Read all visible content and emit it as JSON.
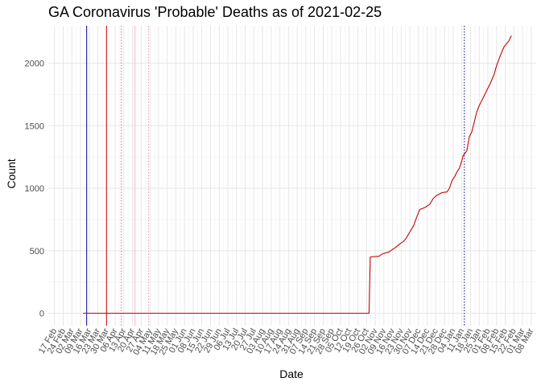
{
  "chart_data": {
    "type": "line",
    "title": "GA Coronavirus 'Probable' Deaths as of 2021-02-25",
    "xlabel": "Date",
    "ylabel": "Count",
    "xlim": [
      "2020-02-12",
      "2021-03-12"
    ],
    "ylim": [
      -100,
      2300
    ],
    "grid": true,
    "legend": "none",
    "y_ticks": [
      0,
      500,
      1000,
      1500,
      2000
    ],
    "x_ticks": [
      {
        "date": "2020-02-17",
        "label": "17 Feb"
      },
      {
        "date": "2020-02-24",
        "label": "24 Feb"
      },
      {
        "date": "2020-03-02",
        "label": "02 Mar"
      },
      {
        "date": "2020-03-09",
        "label": "09 Mar"
      },
      {
        "date": "2020-03-16",
        "label": "16 Mar"
      },
      {
        "date": "2020-03-23",
        "label": "23 Mar"
      },
      {
        "date": "2020-03-30",
        "label": "30 Mar"
      },
      {
        "date": "2020-04-06",
        "label": "06 Apr"
      },
      {
        "date": "2020-04-13",
        "label": "13 Apr"
      },
      {
        "date": "2020-04-20",
        "label": "20 Apr"
      },
      {
        "date": "2020-04-27",
        "label": "27 Apr"
      },
      {
        "date": "2020-05-04",
        "label": "04 May"
      },
      {
        "date": "2020-05-11",
        "label": "11 May"
      },
      {
        "date": "2020-05-18",
        "label": "18 May"
      },
      {
        "date": "2020-05-25",
        "label": "25 May"
      },
      {
        "date": "2020-06-01",
        "label": "01 Jun"
      },
      {
        "date": "2020-06-08",
        "label": "08 Jun"
      },
      {
        "date": "2020-06-15",
        "label": "15 Jun"
      },
      {
        "date": "2020-06-22",
        "label": "22 Jun"
      },
      {
        "date": "2020-06-29",
        "label": "29 Jun"
      },
      {
        "date": "2020-07-06",
        "label": "06 Jul"
      },
      {
        "date": "2020-07-13",
        "label": "13 Jul"
      },
      {
        "date": "2020-07-20",
        "label": "20 Jul"
      },
      {
        "date": "2020-07-27",
        "label": "27 Jul"
      },
      {
        "date": "2020-08-03",
        "label": "03 Aug"
      },
      {
        "date": "2020-08-10",
        "label": "10 Aug"
      },
      {
        "date": "2020-08-17",
        "label": "17 Aug"
      },
      {
        "date": "2020-08-24",
        "label": "24 Aug"
      },
      {
        "date": "2020-08-31",
        "label": "31 Aug"
      },
      {
        "date": "2020-09-07",
        "label": "07 Sep"
      },
      {
        "date": "2020-09-14",
        "label": "14 Sep"
      },
      {
        "date": "2020-09-21",
        "label": "21 Sep"
      },
      {
        "date": "2020-09-28",
        "label": "28 Sep"
      },
      {
        "date": "2020-10-05",
        "label": "05 Oct"
      },
      {
        "date": "2020-10-12",
        "label": "12 Oct"
      },
      {
        "date": "2020-10-19",
        "label": "19 Oct"
      },
      {
        "date": "2020-10-26",
        "label": "26 Oct"
      },
      {
        "date": "2020-11-02",
        "label": "02 Nov"
      },
      {
        "date": "2020-11-09",
        "label": "09 Nov"
      },
      {
        "date": "2020-11-16",
        "label": "16 Nov"
      },
      {
        "date": "2020-11-23",
        "label": "23 Nov"
      },
      {
        "date": "2020-11-30",
        "label": "30 Nov"
      },
      {
        "date": "2020-12-07",
        "label": "07 Dec"
      },
      {
        "date": "2020-12-14",
        "label": "14 Dec"
      },
      {
        "date": "2020-12-21",
        "label": "21 Dec"
      },
      {
        "date": "2020-12-28",
        "label": "28 Dec"
      },
      {
        "date": "2021-01-04",
        "label": "04 Jan"
      },
      {
        "date": "2021-01-11",
        "label": "11 Jan"
      },
      {
        "date": "2021-01-18",
        "label": "18 Jan"
      },
      {
        "date": "2021-01-25",
        "label": "25 Jan"
      },
      {
        "date": "2021-02-01",
        "label": "01 Feb"
      },
      {
        "date": "2021-02-08",
        "label": "08 Feb"
      },
      {
        "date": "2021-02-15",
        "label": "15 Feb"
      },
      {
        "date": "2021-02-22",
        "label": "22 Feb"
      },
      {
        "date": "2021-03-01",
        "label": "01 Mar"
      },
      {
        "date": "2021-03-08",
        "label": "08 Mar"
      }
    ],
    "vlines": [
      {
        "date": "2020-03-14",
        "color": "#00008b",
        "style": "solid"
      },
      {
        "date": "2020-03-30",
        "color": "#cc0000",
        "style": "solid"
      },
      {
        "date": "2020-04-11",
        "color": "#e06060",
        "style": "dotted"
      },
      {
        "date": "2020-04-22",
        "color": "#f2b8c0",
        "style": "solid"
      },
      {
        "date": "2020-05-03",
        "color": "#e8a0a8",
        "style": "dotted"
      },
      {
        "date": "2021-01-13",
        "color": "#00008b",
        "style": "dotted"
      }
    ],
    "series": [
      {
        "color": "#cc0000",
        "points": [
          [
            "2020-03-11",
            0
          ],
          [
            "2020-10-28",
            0
          ],
          [
            "2020-10-29",
            450
          ],
          [
            "2020-11-05",
            455
          ],
          [
            "2020-11-08",
            475
          ],
          [
            "2020-11-13",
            490
          ],
          [
            "2020-11-16",
            510
          ],
          [
            "2020-11-19",
            530
          ],
          [
            "2020-11-22",
            555
          ],
          [
            "2020-11-25",
            575
          ],
          [
            "2020-11-27",
            600
          ],
          [
            "2020-11-30",
            650
          ],
          [
            "2020-12-03",
            700
          ],
          [
            "2020-12-06",
            780
          ],
          [
            "2020-12-08",
            830
          ],
          [
            "2020-12-12",
            845
          ],
          [
            "2020-12-16",
            870
          ],
          [
            "2020-12-19",
            920
          ],
          [
            "2020-12-22",
            945
          ],
          [
            "2020-12-26",
            965
          ],
          [
            "2020-12-30",
            970
          ],
          [
            "2021-01-01",
            1000
          ],
          [
            "2021-01-03",
            1060
          ],
          [
            "2021-01-05",
            1090
          ],
          [
            "2021-01-07",
            1130
          ],
          [
            "2021-01-09",
            1160
          ],
          [
            "2021-01-11",
            1220
          ],
          [
            "2021-01-12",
            1260
          ],
          [
            "2021-01-15",
            1300
          ],
          [
            "2021-01-17",
            1410
          ],
          [
            "2021-01-19",
            1450
          ],
          [
            "2021-01-21",
            1530
          ],
          [
            "2021-01-23",
            1610
          ],
          [
            "2021-01-25",
            1660
          ],
          [
            "2021-01-28",
            1720
          ],
          [
            "2021-01-31",
            1780
          ],
          [
            "2021-02-03",
            1840
          ],
          [
            "2021-02-06",
            1910
          ],
          [
            "2021-02-08",
            1980
          ],
          [
            "2021-02-11",
            2060
          ],
          [
            "2021-02-14",
            2130
          ],
          [
            "2021-02-18",
            2180
          ],
          [
            "2021-02-20",
            2220
          ]
        ]
      }
    ]
  }
}
